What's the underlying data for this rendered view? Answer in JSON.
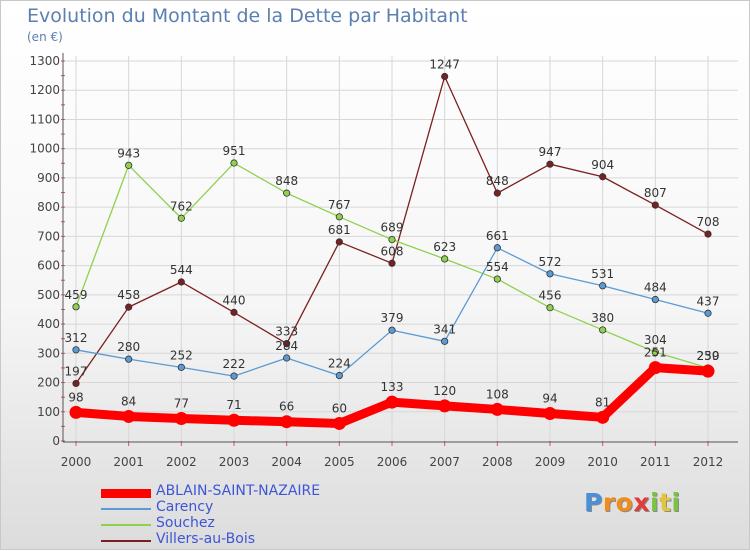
{
  "title": "Evolution du Montant de la Dette par Habitant",
  "subtitle": "(en €)",
  "logo": {
    "letters": [
      "P",
      "r",
      "o",
      "x",
      "i",
      "t",
      "i"
    ]
  },
  "chart_data": {
    "type": "line",
    "x": [
      "2000",
      "2001",
      "2002",
      "2003",
      "2004",
      "2005",
      "2006",
      "2007",
      "2008",
      "2009",
      "2010",
      "2011",
      "2012"
    ],
    "ylim": [
      0,
      1300
    ],
    "yticks": [
      0,
      100,
      200,
      300,
      400,
      500,
      600,
      700,
      800,
      900,
      1000,
      1100,
      1200,
      1300
    ],
    "grid": true,
    "legend_position": "bottom",
    "series": [
      {
        "name": "ABLAIN-SAINT-NAZAIRE",
        "color": "#ff0000",
        "values": [
          98,
          84,
          77,
          71,
          66,
          60,
          133,
          120,
          108,
          94,
          81,
          251,
          239
        ]
      },
      {
        "name": "Carency",
        "color": "#5b9bd5",
        "values": [
          312,
          280,
          252,
          222,
          284,
          224,
          379,
          341,
          661,
          572,
          531,
          484,
          437
        ]
      },
      {
        "name": "Souchez",
        "color": "#8fd14f",
        "values": [
          459,
          943,
          762,
          951,
          848,
          767,
          689,
          623,
          554,
          456,
          380,
          304,
          250
        ]
      },
      {
        "name": "Villers-au-Bois",
        "color": "#7b2020",
        "values": [
          197,
          458,
          544,
          440,
          333,
          681,
          608,
          1247,
          848,
          947,
          904,
          807,
          708
        ]
      }
    ]
  }
}
